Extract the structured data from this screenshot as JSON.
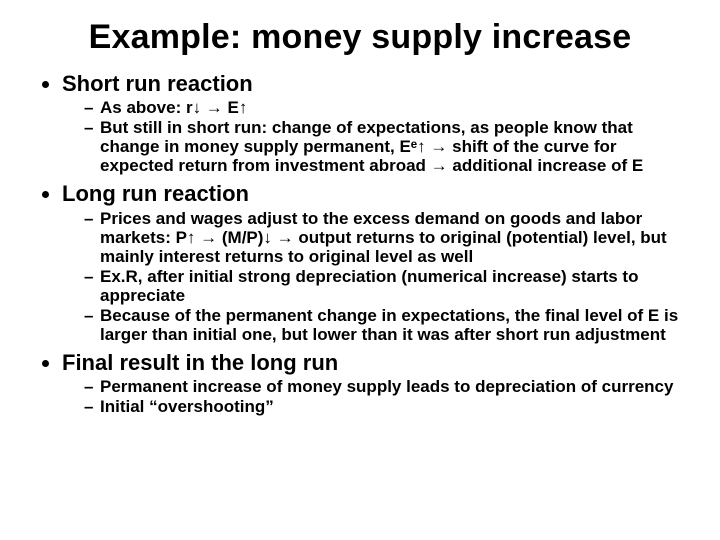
{
  "title": "Example: money supply increase",
  "sections": [
    {
      "heading": "Short run reaction",
      "items": [
        "As above: r↓ → E↑",
        "But still in short run: change of expectations, as people know that change in money supply permanent, Eᵉ↑ → shift of the curve for expected return from investment abroad → additional increase of E"
      ]
    },
    {
      "heading": "Long run reaction",
      "items": [
        "Prices and wages adjust to the excess demand on goods and labor markets: P↑ → (M/P)↓ → output returns to original (potential) level, but mainly interest returns to original level as well",
        "Ex.R, after initial strong depreciation (numerical increase) starts to appreciate",
        "Because of the permanent change in expectations, the final level of E is larger than initial one, but lower than it was after short run adjustment"
      ]
    },
    {
      "heading": "Final result in the long run",
      "items": [
        "Permanent increase of money supply leads to depreciation of currency",
        "Initial “overshooting”"
      ]
    }
  ]
}
